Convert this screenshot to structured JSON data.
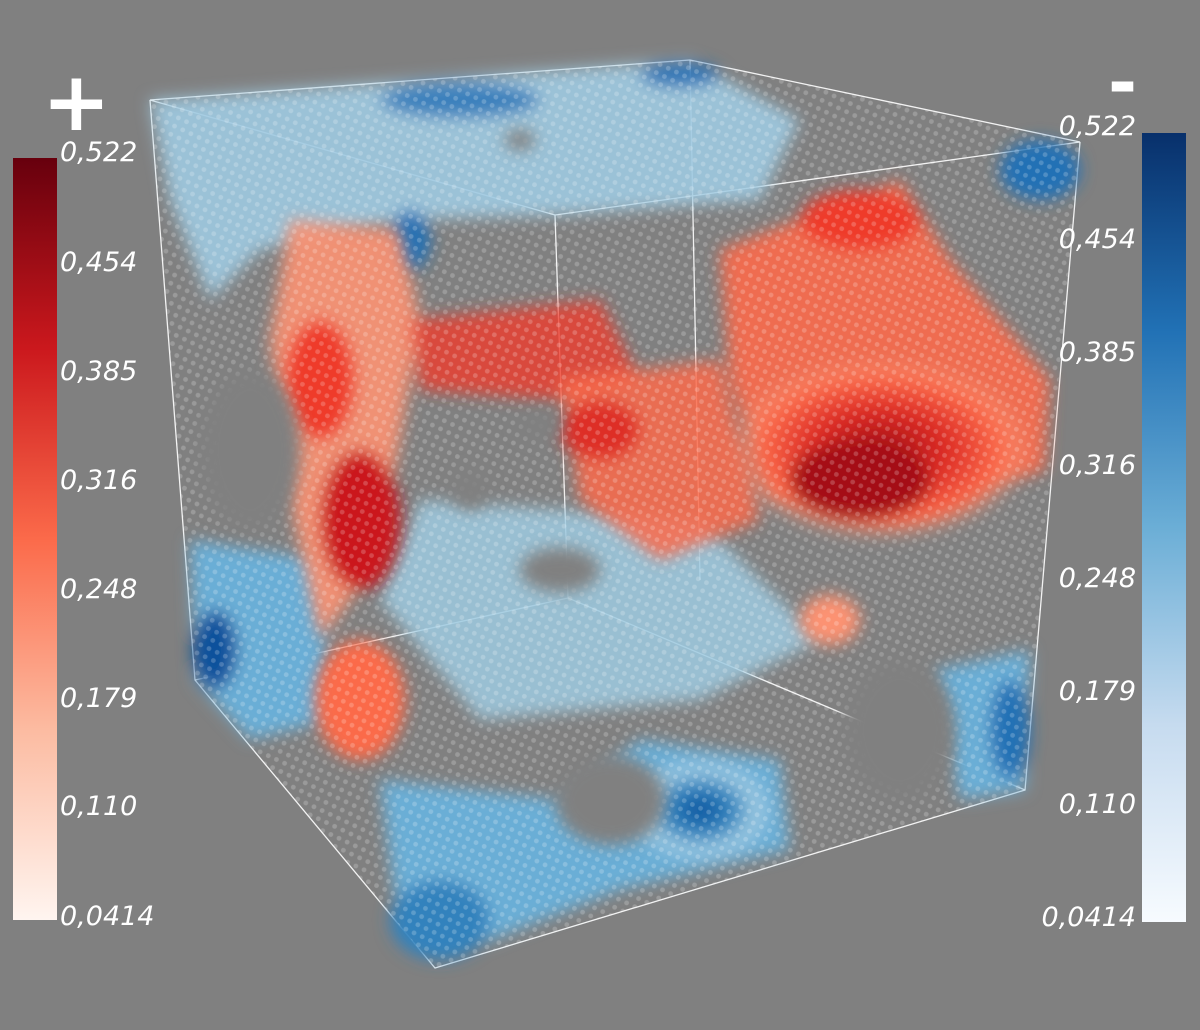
{
  "legend_positive": {
    "sign": "+",
    "color_low": "#fff5f0",
    "color_high": "#67000d",
    "ticks": [
      "0,522",
      "0,454",
      "0,385",
      "0,316",
      "0,248",
      "0,179",
      "0,110",
      "0,0414"
    ]
  },
  "legend_negative": {
    "sign": "-",
    "color_low": "#f7fbff",
    "color_high": "#08306b",
    "ticks": [
      "0,522",
      "0,454",
      "0,385",
      "0,316",
      "0,248",
      "0,179",
      "0,110",
      "0,0414"
    ]
  },
  "scene": {
    "background": "#808080",
    "wireframe_color": "#ffffff"
  }
}
